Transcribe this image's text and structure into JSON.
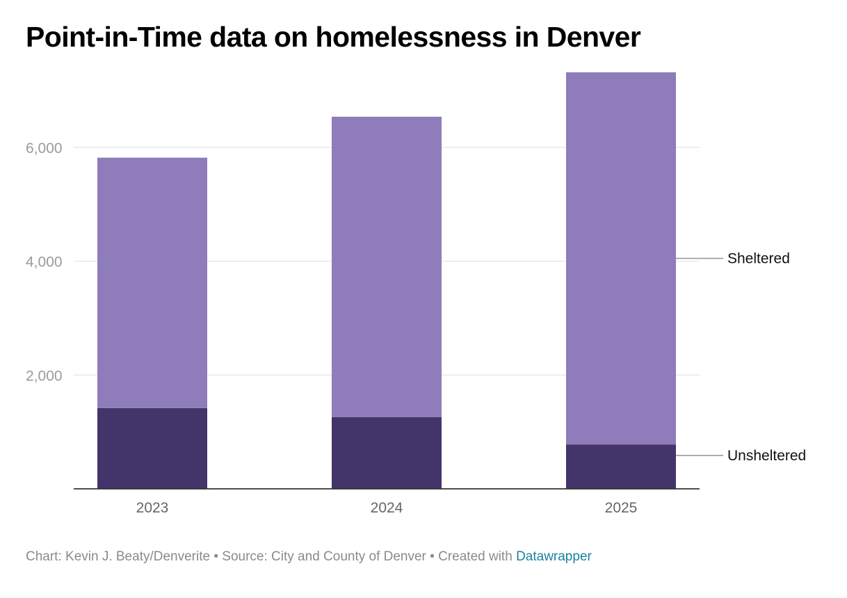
{
  "title": "Point-in-Time data on homelessness in Denver",
  "footer": {
    "credit": "Chart: Kevin J. Beaty/Denverite",
    "separator": " • ",
    "source": "Source: City and County of Denver",
    "created_with": "Created with ",
    "tool": "Datawrapper"
  },
  "colors": {
    "sheltered": "#8f7cba",
    "unsheltered": "#43346a",
    "gridline": "#e3e3e3",
    "axis": "#333333",
    "tick_label": "#9a9a9a",
    "category_label": "#666666",
    "link": "#1d81a2"
  },
  "chart_data": {
    "type": "bar",
    "stacked": true,
    "categories": [
      "2023",
      "2024",
      "2025"
    ],
    "series": [
      {
        "name": "Unsheltered",
        "values": [
          1420,
          1260,
          780
        ],
        "color": "#43346a"
      },
      {
        "name": "Sheltered",
        "values": [
          4400,
          5280,
          6540
        ],
        "color": "#8f7cba"
      }
    ],
    "yticks": [
      "2,000",
      "4,000",
      "6,000"
    ],
    "ytick_values": [
      2000,
      4000,
      6000
    ],
    "ylim": [
      0,
      7320
    ],
    "grid": true,
    "legend": "direct labels at right",
    "xlabel": "",
    "ylabel": ""
  }
}
